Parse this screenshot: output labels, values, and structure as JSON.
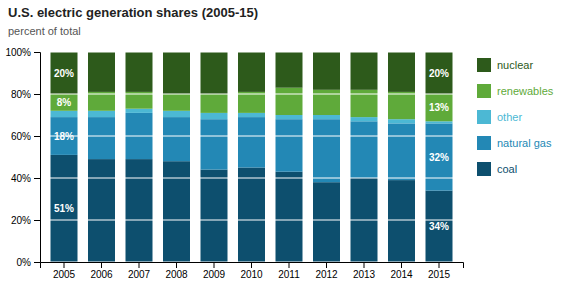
{
  "chart_data": {
    "type": "bar",
    "stacked": true,
    "title": "U.S. electric generation shares (2005-15)",
    "subtitle": "percent of total",
    "categories": [
      "2005",
      "2006",
      "2007",
      "2008",
      "2009",
      "2010",
      "2011",
      "2012",
      "2013",
      "2014",
      "2015"
    ],
    "series": [
      {
        "name": "coal",
        "color": "#0d4f6e",
        "values": [
          51,
          49,
          49,
          48,
          44,
          45,
          43,
          38,
          40,
          39,
          34
        ],
        "value_labels": [
          "51%",
          null,
          null,
          null,
          null,
          null,
          null,
          null,
          null,
          null,
          "34%"
        ]
      },
      {
        "name": "natural gas",
        "color": "#2388b5",
        "values": [
          18,
          20,
          22,
          21,
          24,
          24,
          25,
          30,
          27,
          27,
          32
        ],
        "value_labels": [
          "18%",
          null,
          null,
          null,
          null,
          null,
          null,
          null,
          null,
          null,
          "32%"
        ]
      },
      {
        "name": "other",
        "color": "#4cb8d4",
        "values": [
          3,
          3,
          2,
          3,
          3,
          2,
          2,
          2,
          2,
          2,
          1
        ]
      },
      {
        "name": "renewables",
        "color": "#5faa3a",
        "values": [
          8,
          9,
          8,
          8,
          9,
          10,
          13,
          12,
          13,
          13,
          13
        ],
        "value_labels": [
          "8%",
          null,
          null,
          null,
          null,
          null,
          null,
          null,
          null,
          null,
          "13%"
        ]
      },
      {
        "name": "nuclear",
        "color": "#2d5a1b",
        "values": [
          20,
          19,
          19,
          20,
          20,
          19,
          17,
          18,
          18,
          19,
          20
        ],
        "value_labels": [
          "20%",
          null,
          null,
          null,
          null,
          null,
          null,
          null,
          null,
          null,
          "20%"
        ]
      }
    ],
    "ylim": [
      0,
      100
    ],
    "yticks": [
      {
        "value": 0,
        "label": "0%"
      },
      {
        "value": 20,
        "label": "20%"
      },
      {
        "value": 40,
        "label": "40%"
      },
      {
        "value": 60,
        "label": "60%"
      },
      {
        "value": 80,
        "label": "80%"
      },
      {
        "value": 100,
        "label": "100%"
      }
    ],
    "grid": true,
    "data_labels": true
  }
}
